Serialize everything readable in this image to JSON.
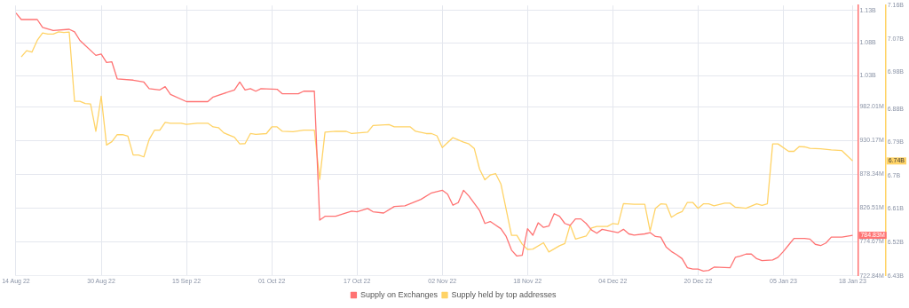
{
  "chart_data": {
    "type": "line",
    "series": [
      {
        "name": "Supply on Exchanges",
        "color": "#ff7373",
        "axis": "y",
        "x": [
          "2022-08-14",
          "2022-08-15",
          "2022-08-18",
          "2022-08-19",
          "2022-08-21",
          "2022-08-24",
          "2022-08-25",
          "2022-08-26",
          "2022-08-29",
          "2022-08-30",
          "2022-08-31",
          "2022-09-01",
          "2022-09-02",
          "2022-09-05",
          "2022-09-07",
          "2022-09-08",
          "2022-09-10",
          "2022-09-11",
          "2022-09-12",
          "2022-09-15",
          "2022-09-19",
          "2022-09-20",
          "2022-09-24",
          "2022-09-25",
          "2022-09-26",
          "2022-09-27",
          "2022-09-28",
          "2022-09-29",
          "2022-10-02",
          "2022-10-03",
          "2022-10-06",
          "2022-10-07",
          "2022-10-09",
          "2022-10-10",
          "2022-10-11",
          "2022-10-13",
          "2022-10-16",
          "2022-10-17",
          "2022-10-19",
          "2022-10-20",
          "2022-10-22",
          "2022-10-24",
          "2022-10-26",
          "2022-10-29",
          "2022-10-31",
          "2022-11-02",
          "2022-11-03",
          "2022-11-04",
          "2022-11-05",
          "2022-11-06",
          "2022-11-07",
          "2022-11-09",
          "2022-11-10",
          "2022-11-11",
          "2022-11-13",
          "2022-11-14",
          "2022-11-15",
          "2022-11-16",
          "2022-11-17",
          "2022-11-18",
          "2022-11-19",
          "2022-11-20",
          "2022-11-21",
          "2022-11-22",
          "2022-11-23",
          "2022-11-24",
          "2022-11-25",
          "2022-11-26",
          "2022-11-27",
          "2022-11-28",
          "2022-11-29",
          "2022-11-30",
          "2022-12-01",
          "2022-12-02",
          "2022-12-05",
          "2022-12-06",
          "2022-12-07",
          "2022-12-08",
          "2022-12-10",
          "2022-12-11",
          "2022-12-12",
          "2022-12-13",
          "2022-12-14",
          "2022-12-15",
          "2022-12-16",
          "2022-12-17",
          "2022-12-18",
          "2022-12-19",
          "2022-12-20",
          "2022-12-21",
          "2022-12-22",
          "2022-12-23",
          "2022-12-26",
          "2022-12-27",
          "2022-12-28",
          "2022-12-29",
          "2022-12-30",
          "2022-12-31",
          "2023-01-01",
          "2023-01-03",
          "2023-01-04",
          "2023-01-05",
          "2023-01-06",
          "2023-01-07",
          "2023-01-09",
          "2023-01-10",
          "2023-01-11",
          "2023-01-12",
          "2023-01-13",
          "2023-01-14",
          "2023-01-16",
          "2023-01-18"
        ],
        "values": [
          1126000000.0,
          1116000000.0,
          1116000000.0,
          1104000000.0,
          1099000000.0,
          1101000000.0,
          1097000000.0,
          1084000000.0,
          1061000000.0,
          1063000000.0,
          1050000000.0,
          1051000000.0,
          1025000000.0,
          1023000000.0,
          1020000000.0,
          1010000000.0,
          1008000000.0,
          1013000000.0,
          1001000000.0,
          990000000.0,
          990000000.0,
          997000000.0,
          1008000000.0,
          1020000000.0,
          1008000000.0,
          1010000000.0,
          1006000000.0,
          1010000000.0,
          1009000000.0,
          1002000000.0,
          1002000000.0,
          1006000000.0,
          1006000000.0,
          808000000.0,
          814000000.0,
          814000000.0,
          822000000.0,
          821000000.0,
          826000000.0,
          821000000.0,
          819000000.0,
          829000000.0,
          830000000.0,
          840000000.0,
          850000000.0,
          854000000.0,
          848000000.0,
          831000000.0,
          835000000.0,
          854000000.0,
          845000000.0,
          823000000.0,
          803000000.0,
          806000000.0,
          795000000.0,
          783000000.0,
          762000000.0,
          753000000.0,
          754000000.0,
          795000000.0,
          785000000.0,
          804000000.0,
          797000000.0,
          799000000.0,
          818000000.0,
          814000000.0,
          803000000.0,
          800000000.0,
          810000000.0,
          810000000.0,
          803000000.0,
          793000000.0,
          788000000.0,
          794000000.0,
          789000000.0,
          794000000.0,
          787000000.0,
          785000000.0,
          787000000.0,
          789000000.0,
          783000000.0,
          782000000.0,
          767000000.0,
          760000000.0,
          755000000.0,
          749000000.0,
          735000000.0,
          733000000.0,
          733000000.0,
          730000000.0,
          731000000.0,
          736000000.0,
          735000000.0,
          751000000.0,
          753000000.0,
          756000000.0,
          756000000.0,
          749000000.0,
          746000000.0,
          747000000.0,
          751000000.0,
          760000000.0,
          770000000.0,
          780000000.0,
          780000000.0,
          779000000.0,
          771000000.0,
          769000000.0,
          773000000.0,
          782000000.0,
          782000000.0,
          784830000.0
        ]
      },
      {
        "name": "Supply held by top addresses",
        "color": "#ffd366",
        "axis": "y2",
        "x": [
          "2022-08-15",
          "2022-08-16",
          "2022-08-17",
          "2022-08-18",
          "2022-08-19",
          "2022-08-20",
          "2022-08-21",
          "2022-08-22",
          "2022-08-23",
          "2022-08-24",
          "2022-08-25",
          "2022-08-26",
          "2022-08-27",
          "2022-08-28",
          "2022-08-29",
          "2022-08-30",
          "2022-08-31",
          "2022-09-01",
          "2022-09-02",
          "2022-09-03",
          "2022-09-04",
          "2022-09-05",
          "2022-09-06",
          "2022-09-07",
          "2022-09-08",
          "2022-09-09",
          "2022-09-10",
          "2022-09-11",
          "2022-09-12",
          "2022-09-14",
          "2022-09-15",
          "2022-09-17",
          "2022-09-19",
          "2022-09-20",
          "2022-09-21",
          "2022-09-22",
          "2022-09-24",
          "2022-09-25",
          "2022-09-26",
          "2022-09-27",
          "2022-09-28",
          "2022-09-30",
          "2022-10-01",
          "2022-10-02",
          "2022-10-03",
          "2022-10-05",
          "2022-10-07",
          "2022-10-09",
          "2022-10-10",
          "2022-10-11",
          "2022-10-13",
          "2022-10-15",
          "2022-10-16",
          "2022-10-19",
          "2022-10-20",
          "2022-10-23",
          "2022-10-24",
          "2022-10-27",
          "2022-10-28",
          "2022-10-30",
          "2022-10-31",
          "2022-11-01",
          "2022-11-02",
          "2022-11-04",
          "2022-11-06",
          "2022-11-07",
          "2022-11-08",
          "2022-11-09",
          "2022-11-10",
          "2022-11-11",
          "2022-11-12",
          "2022-11-13",
          "2022-11-15",
          "2022-11-16",
          "2022-11-17",
          "2022-11-18",
          "2022-11-19",
          "2022-11-21",
          "2022-11-22",
          "2022-11-24",
          "2022-11-25",
          "2022-11-26",
          "2022-11-27",
          "2022-11-29",
          "2022-11-30",
          "2022-12-01",
          "2022-12-03",
          "2022-12-04",
          "2022-12-05",
          "2022-12-06",
          "2022-12-08",
          "2022-12-10",
          "2022-12-11",
          "2022-12-12",
          "2022-12-13",
          "2022-12-14",
          "2022-12-15",
          "2022-12-16",
          "2022-12-17",
          "2022-12-18",
          "2022-12-19",
          "2022-12-20",
          "2022-12-21",
          "2022-12-22",
          "2022-12-23",
          "2022-12-25",
          "2022-12-26",
          "2022-12-27",
          "2022-12-29",
          "2022-12-31",
          "2023-01-01",
          "2023-01-02",
          "2023-01-03",
          "2023-01-04",
          "2023-01-06",
          "2023-01-07",
          "2023-01-08",
          "2023-01-09",
          "2023-01-10",
          "2023-01-12",
          "2023-01-14",
          "2023-01-16",
          "2023-01-18"
        ],
        "values": [
          7021000000.0,
          7038000000.0,
          7034000000.0,
          7066000000.0,
          7086000000.0,
          7083000000.0,
          7083000000.0,
          7089000000.0,
          7087000000.0,
          7088000000.0,
          6901000000.0,
          6901000000.0,
          6895000000.0,
          6894000000.0,
          6820000000.0,
          6915000000.0,
          6783000000.0,
          6792000000.0,
          6811000000.0,
          6811000000.0,
          6807000000.0,
          6756000000.0,
          6756000000.0,
          6751000000.0,
          6798000000.0,
          6823000000.0,
          6823000000.0,
          6844000000.0,
          6842000000.0,
          6842000000.0,
          6839000000.0,
          6842000000.0,
          6842000000.0,
          6832000000.0,
          6830000000.0,
          6816000000.0,
          6804000000.0,
          6786000000.0,
          6787000000.0,
          6814000000.0,
          6812000000.0,
          6814000000.0,
          6832000000.0,
          6832000000.0,
          6820000000.0,
          6819000000.0,
          6823000000.0,
          6823000000.0,
          6690000000.0,
          6818000000.0,
          6820000000.0,
          6820000000.0,
          6814000000.0,
          6818000000.0,
          6836000000.0,
          6838000000.0,
          6832000000.0,
          6832000000.0,
          6820000000.0,
          6814000000.0,
          6814000000.0,
          6808000000.0,
          6776000000.0,
          6803000000.0,
          6791000000.0,
          6786000000.0,
          6774000000.0,
          6718000000.0,
          6689000000.0,
          6702000000.0,
          6706000000.0,
          6678000000.0,
          6539000000.0,
          6539000000.0,
          6515000000.0,
          6501000000.0,
          6502000000.0,
          6519000000.0,
          6494000000.0,
          6511000000.0,
          6517000000.0,
          6567000000.0,
          6529000000.0,
          6537000000.0,
          6559000000.0,
          6563000000.0,
          6563000000.0,
          6571000000.0,
          6569000000.0,
          6625000000.0,
          6623000000.0,
          6623000000.0,
          6551000000.0,
          6612000000.0,
          6624000000.0,
          6623000000.0,
          6588000000.0,
          6597000000.0,
          6603000000.0,
          6628000000.0,
          6628000000.0,
          6612000000.0,
          6624000000.0,
          6624000000.0,
          6619000000.0,
          6626000000.0,
          6626000000.0,
          6615000000.0,
          6612000000.0,
          6624000000.0,
          6620000000.0,
          6624000000.0,
          6786000000.0,
          6786000000.0,
          6766000000.0,
          6766000000.0,
          6779000000.0,
          6778000000.0,
          6774000000.0,
          6773000000.0,
          6770000000.0,
          6768000000.0,
          6740000000.0
        ]
      }
    ],
    "xlim": [
      "2022-08-14",
      "2023-01-19"
    ],
    "xticks": [
      {
        "value": "2022-08-14",
        "label": "14 Aug 22"
      },
      {
        "value": "2022-08-30",
        "label": "30 Aug 22"
      },
      {
        "value": "2022-09-15",
        "label": "15 Sep 22"
      },
      {
        "value": "2022-10-01",
        "label": "01 Oct 22"
      },
      {
        "value": "2022-10-17",
        "label": "17 Oct 22"
      },
      {
        "value": "2022-11-02",
        "label": "02 Nov 22"
      },
      {
        "value": "2022-11-18",
        "label": "18 Nov 22"
      },
      {
        "value": "2022-12-04",
        "label": "04 Dec 22"
      },
      {
        "value": "2022-12-20",
        "label": "20 Dec 22"
      },
      {
        "value": "2023-01-05",
        "label": "05 Jan 23"
      },
      {
        "value": "2023-01-18",
        "label": "18 Jan 23"
      }
    ],
    "ylim": [
      722840000.0,
      1137520000.0
    ],
    "yticks": [
      {
        "value": 722840000.0,
        "label": "722.84M"
      },
      {
        "value": 774670000.0,
        "label": "774.67M"
      },
      {
        "value": 826510000.0,
        "label": "826.51M"
      },
      {
        "value": 878340000.0,
        "label": "878.34M"
      },
      {
        "value": 930170000.0,
        "label": "930.17M"
      },
      {
        "value": 982010000.0,
        "label": "982.01M"
      },
      {
        "value": 1030000000.0,
        "label": "1.03B"
      },
      {
        "value": 1080000000.0,
        "label": "1.08B"
      },
      {
        "value": 1130000000.0,
        "label": "1.13B"
      }
    ],
    "y2lim": [
      6430000000.0,
      7160000000.0
    ],
    "y2ticks": [
      {
        "value": 6430000000.0,
        "label": "6.43B"
      },
      {
        "value": 6520000000.0,
        "label": "6.52B"
      },
      {
        "value": 6610000000.0,
        "label": "6.61B"
      },
      {
        "value": 6700000000.0,
        "label": "6.7B"
      },
      {
        "value": 6790000000.0,
        "label": "6.79B"
      },
      {
        "value": 6880000000.0,
        "label": "6.88B"
      },
      {
        "value": 6980000000.0,
        "label": "6.98B"
      },
      {
        "value": 7070000000.0,
        "label": "7.07B"
      },
      {
        "value": 7160000000.0,
        "label": "7.16B"
      }
    ],
    "annotations": [
      "784.83M",
      "6.74B"
    ],
    "grid": true,
    "legend": "bottom",
    "marker": "none",
    "line_style": "solid"
  }
}
